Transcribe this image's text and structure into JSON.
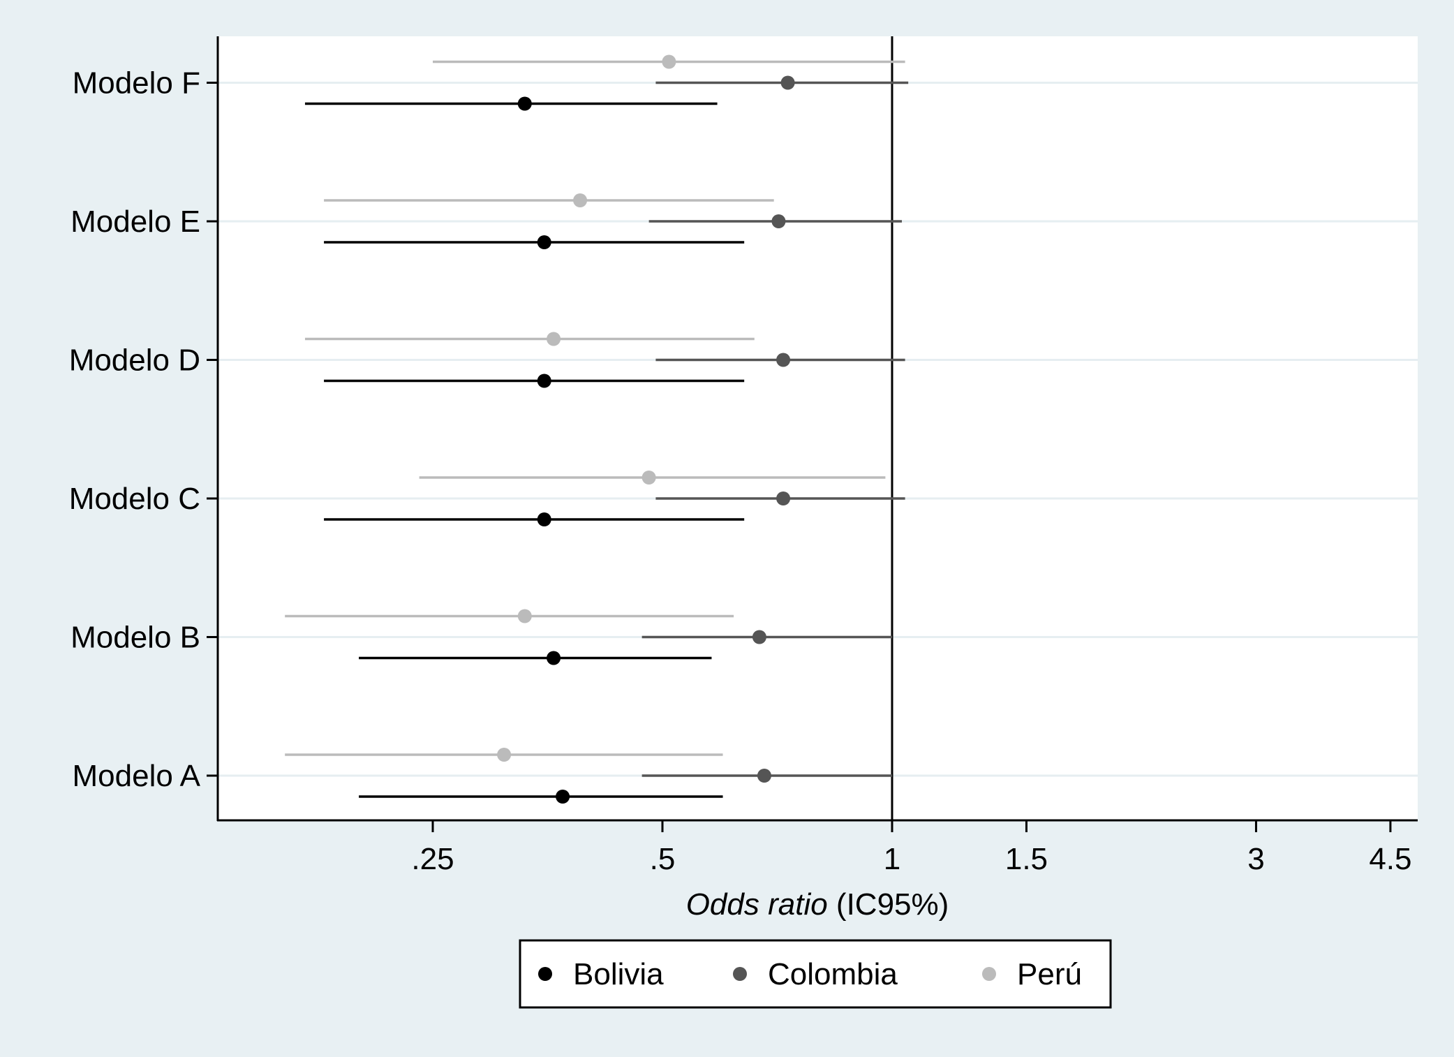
{
  "chart_data": {
    "type": "forest",
    "title": "",
    "xlabel_italic": "Odds ratio",
    "xlabel_rest": " (IC95%)",
    "x_scale": "log",
    "xlim": [
      0.15,
      4.5
    ],
    "x_ticks": [
      {
        "value": 0.25,
        "label": ".25"
      },
      {
        "value": 0.5,
        "label": ".5"
      },
      {
        "value": 1,
        "label": "1"
      },
      {
        "value": 1.5,
        "label": "1.5"
      },
      {
        "value": 3,
        "label": "3"
      },
      {
        "value": 4.5,
        "label": "4.5"
      }
    ],
    "reference_line": 1,
    "grid": "horizontal",
    "categories": [
      "Modelo A",
      "Modelo B",
      "Modelo C",
      "Modelo D",
      "Modelo E",
      "Modelo F"
    ],
    "series": [
      {
        "name": "Bolivia",
        "color": "#000000",
        "offset": 1,
        "points": [
          {
            "or": 0.37,
            "low": 0.2,
            "high": 0.6
          },
          {
            "or": 0.36,
            "low": 0.2,
            "high": 0.58
          },
          {
            "or": 0.35,
            "low": 0.18,
            "high": 0.64
          },
          {
            "or": 0.35,
            "low": 0.18,
            "high": 0.64
          },
          {
            "or": 0.35,
            "low": 0.18,
            "high": 0.64
          },
          {
            "or": 0.33,
            "low": 0.17,
            "high": 0.59
          }
        ]
      },
      {
        "name": "Colombia",
        "color": "#555555",
        "offset": 0,
        "points": [
          {
            "or": 0.68,
            "low": 0.47,
            "high": 1.0
          },
          {
            "or": 0.67,
            "low": 0.47,
            "high": 1.0
          },
          {
            "or": 0.72,
            "low": 0.49,
            "high": 1.04
          },
          {
            "or": 0.72,
            "low": 0.49,
            "high": 1.04
          },
          {
            "or": 0.71,
            "low": 0.48,
            "high": 1.03
          },
          {
            "or": 0.73,
            "low": 0.49,
            "high": 1.05
          }
        ]
      },
      {
        "name": "Perú",
        "color": "#bbbbbb",
        "offset": -1,
        "points": [
          {
            "or": 0.31,
            "low": 0.16,
            "high": 0.6
          },
          {
            "or": 0.33,
            "low": 0.16,
            "high": 0.62
          },
          {
            "or": 0.48,
            "low": 0.24,
            "high": 0.98
          },
          {
            "or": 0.36,
            "low": 0.17,
            "high": 0.66
          },
          {
            "or": 0.39,
            "low": 0.18,
            "high": 0.7
          },
          {
            "or": 0.51,
            "low": 0.25,
            "high": 1.04
          }
        ]
      }
    ],
    "legend": {
      "placement": "bottom",
      "items": [
        "Bolivia",
        "Colombia",
        "Perú"
      ]
    }
  }
}
